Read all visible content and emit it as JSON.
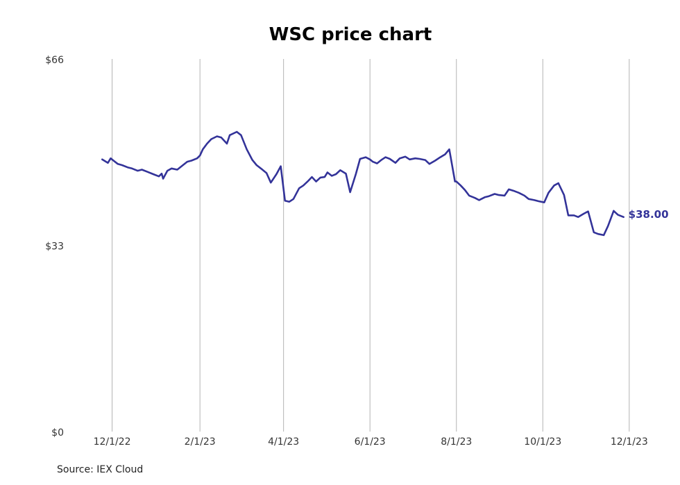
{
  "chart_data": {
    "type": "line",
    "title": "WSC price chart",
    "source": "Source: IEX Cloud",
    "xlabel": "",
    "ylabel": "",
    "x_range": [
      "2022-11-17",
      "2023-12-05"
    ],
    "y_range": [
      0,
      66
    ],
    "y_ticks": [
      0,
      33,
      66
    ],
    "y_tick_labels": [
      "$0",
      "$33",
      "$66"
    ],
    "x_ticks": [
      "2022-12-01",
      "2023-02-01",
      "2023-04-01",
      "2023-06-01",
      "2023-08-01",
      "2023-10-01",
      "2023-12-01"
    ],
    "x_tick_labels": [
      "12/1/22",
      "2/1/23",
      "4/1/23",
      "6/1/23",
      "8/1/23",
      "10/1/23",
      "12/1/23"
    ],
    "grid": "vertical",
    "line_color": "#333399",
    "end_label": "$38.00",
    "series": [
      {
        "x": [
          "2022-11-24",
          "2022-11-28",
          "2022-11-30",
          "2022-12-02",
          "2022-12-05",
          "2022-12-08",
          "2022-12-12",
          "2022-12-15",
          "2022-12-19",
          "2022-12-22",
          "2022-12-26",
          "2022-12-30",
          "2023-01-03",
          "2023-01-05",
          "2023-01-06",
          "2023-01-09",
          "2023-01-12",
          "2023-01-16",
          "2023-01-19",
          "2023-01-23",
          "2023-01-26",
          "2023-01-30",
          "2023-02-01",
          "2023-02-03",
          "2023-02-06",
          "2023-02-09",
          "2023-02-13",
          "2023-02-16",
          "2023-02-20",
          "2023-02-22",
          "2023-02-27",
          "2023-03-02",
          "2023-03-06",
          "2023-03-10",
          "2023-03-13",
          "2023-03-16",
          "2023-03-20",
          "2023-03-23",
          "2023-03-27",
          "2023-03-30",
          "2023-04-02",
          "2023-04-05",
          "2023-04-08",
          "2023-04-12",
          "2023-04-15",
          "2023-04-18",
          "2023-04-21",
          "2023-04-24",
          "2023-04-27",
          "2023-04-30",
          "2023-05-02",
          "2023-05-05",
          "2023-05-08",
          "2023-05-11",
          "2023-05-15",
          "2023-05-18",
          "2023-05-22",
          "2023-05-25",
          "2023-05-29",
          "2023-06-01",
          "2023-06-03",
          "2023-06-06",
          "2023-06-09",
          "2023-06-12",
          "2023-06-15",
          "2023-06-19",
          "2023-06-22",
          "2023-06-26",
          "2023-06-29",
          "2023-07-03",
          "2023-07-06",
          "2023-07-10",
          "2023-07-13",
          "2023-07-17",
          "2023-07-20",
          "2023-07-24",
          "2023-07-27",
          "2023-07-31",
          "2023-08-01",
          "2023-08-04",
          "2023-08-07",
          "2023-08-10",
          "2023-08-14",
          "2023-08-17",
          "2023-08-21",
          "2023-08-24",
          "2023-08-28",
          "2023-08-31",
          "2023-09-04",
          "2023-09-07",
          "2023-09-11",
          "2023-09-14",
          "2023-09-18",
          "2023-09-21",
          "2023-09-25",
          "2023-09-28",
          "2023-10-02",
          "2023-10-05",
          "2023-10-09",
          "2023-10-12",
          "2023-10-16",
          "2023-10-19",
          "2023-10-23",
          "2023-10-26",
          "2023-10-30",
          "2023-11-02",
          "2023-11-06",
          "2023-11-09",
          "2023-11-13",
          "2023-11-16",
          "2023-11-20",
          "2023-11-23",
          "2023-11-27"
        ],
        "y": [
          48.2,
          47.6,
          48.4,
          48.0,
          47.4,
          47.2,
          46.8,
          46.6,
          46.2,
          46.4,
          46.0,
          45.6,
          45.2,
          45.7,
          44.8,
          46.2,
          46.6,
          46.4,
          47.0,
          47.8,
          48.0,
          48.4,
          48.9,
          50.0,
          51.0,
          51.8,
          52.3,
          52.1,
          51.0,
          52.5,
          53.1,
          52.5,
          50.0,
          48.1,
          47.2,
          46.6,
          45.8,
          44.1,
          45.6,
          47.0,
          40.9,
          40.7,
          41.2,
          43.1,
          43.6,
          44.3,
          45.1,
          44.3,
          45.0,
          45.1,
          45.9,
          45.3,
          45.6,
          46.3,
          45.7,
          42.4,
          45.6,
          48.3,
          48.6,
          48.2,
          47.8,
          47.5,
          48.1,
          48.6,
          48.3,
          47.6,
          48.4,
          48.7,
          48.2,
          48.4,
          48.3,
          48.1,
          47.4,
          48.0,
          48.5,
          49.1,
          50.0,
          44.3,
          44.3,
          43.6,
          42.8,
          41.8,
          41.4,
          41.0,
          41.5,
          41.7,
          42.1,
          41.9,
          41.8,
          42.9,
          42.6,
          42.3,
          41.8,
          41.2,
          41.0,
          40.8,
          40.6,
          42.3,
          43.6,
          44.0,
          41.9,
          38.3,
          38.3,
          38.0,
          38.6,
          39.0,
          35.3,
          35.0,
          34.8,
          36.4,
          39.1,
          38.4,
          38.0
        ]
      }
    ]
  }
}
